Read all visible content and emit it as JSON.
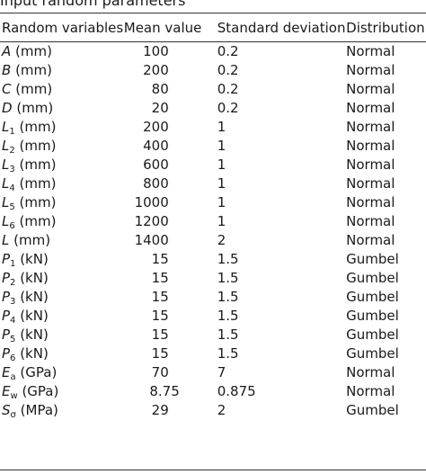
{
  "title_fragment": "Input  random  parameters",
  "headers": {
    "variable": "Random variables",
    "mean": "Mean value",
    "std": "Standard deviation",
    "dist": "Distribution"
  },
  "rows": [
    {
      "sym": "A",
      "sub": "",
      "unit": "(mm)",
      "mean": "100",
      "std": "0.2",
      "dist": "Normal"
    },
    {
      "sym": "B",
      "sub": "",
      "unit": "(mm)",
      "mean": "200",
      "std": "0.2",
      "dist": "Normal"
    },
    {
      "sym": "C",
      "sub": "",
      "unit": "(mm)",
      "mean": "80",
      "std": "0.2",
      "dist": "Normal"
    },
    {
      "sym": "D",
      "sub": "",
      "unit": "(mm)",
      "mean": "20",
      "std": "0.2",
      "dist": "Normal"
    },
    {
      "sym": "L",
      "sub": "1",
      "unit": "(mm)",
      "mean": "200",
      "std": "1",
      "dist": "Normal"
    },
    {
      "sym": "L",
      "sub": "2",
      "unit": "(mm)",
      "mean": "400",
      "std": "1",
      "dist": "Normal"
    },
    {
      "sym": "L",
      "sub": "3",
      "unit": "(mm)",
      "mean": "600",
      "std": "1",
      "dist": "Normal"
    },
    {
      "sym": "L",
      "sub": "4",
      "unit": "(mm)",
      "mean": "800",
      "std": "1",
      "dist": "Normal"
    },
    {
      "sym": "L",
      "sub": "5",
      "unit": "(mm)",
      "mean": "1000",
      "std": "1",
      "dist": "Normal"
    },
    {
      "sym": "L",
      "sub": "6",
      "unit": "(mm)",
      "mean": "1200",
      "std": "1",
      "dist": "Normal"
    },
    {
      "sym": "L",
      "sub": "",
      "unit": "(mm)",
      "mean": "1400",
      "std": "2",
      "dist": "Normal"
    },
    {
      "sym": "P",
      "sub": "1",
      "unit": "(kN)",
      "mean": "15",
      "std": "1.5",
      "dist": "Gumbel"
    },
    {
      "sym": "P",
      "sub": "2",
      "unit": "(kN)",
      "mean": "15",
      "std": "1.5",
      "dist": "Gumbel"
    },
    {
      "sym": "P",
      "sub": "3",
      "unit": "(kN)",
      "mean": "15",
      "std": "1.5",
      "dist": "Gumbel"
    },
    {
      "sym": "P",
      "sub": "4",
      "unit": "(kN)",
      "mean": "15",
      "std": "1.5",
      "dist": "Gumbel"
    },
    {
      "sym": "P",
      "sub": "5",
      "unit": "(kN)",
      "mean": "15",
      "std": "1.5",
      "dist": "Gumbel"
    },
    {
      "sym": "P",
      "sub": "6",
      "unit": "(kN)",
      "mean": "15",
      "std": "1.5",
      "dist": "Gumbel"
    },
    {
      "sym": "E",
      "sub": "a",
      "unit": "(GPa)",
      "mean": "70",
      "std": "7",
      "dist": "Normal"
    },
    {
      "sym": "E",
      "sub": "w",
      "unit": "(GPa)",
      "mean": "8.75",
      "std": "0.875",
      "dist": "Normal"
    },
    {
      "sym": "S",
      "sub": "σ",
      "unit": "(MPa)",
      "mean": "29",
      "std": "2",
      "dist": "Gumbel"
    }
  ]
}
